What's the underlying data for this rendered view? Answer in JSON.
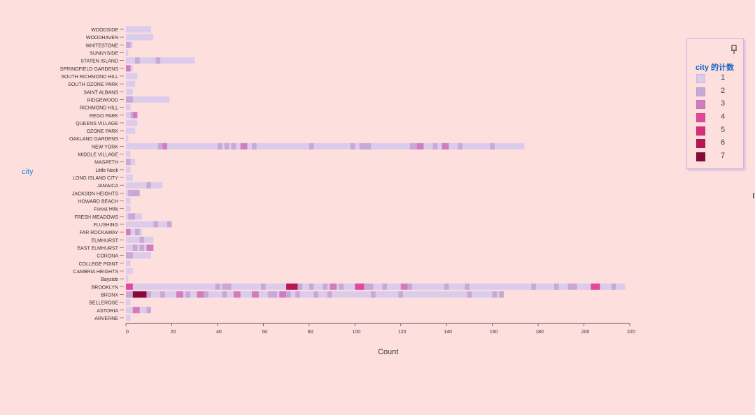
{
  "chart_data": {
    "type": "bar",
    "orientation": "horizontal",
    "stacked": true,
    "xlabel": "Count",
    "ylabel": "city",
    "xlim": [
      0,
      220
    ],
    "xticks": [
      0,
      20,
      40,
      60,
      80,
      100,
      120,
      140,
      160,
      180,
      200,
      220
    ],
    "legend": {
      "title": "city 的计数",
      "placement": "right",
      "items": [
        {
          "label": "1",
          "color": "#dcccec"
        },
        {
          "label": "2",
          "color": "#c8a8d8"
        },
        {
          "label": "3",
          "color": "#d07cc0"
        },
        {
          "label": "4",
          "color": "#e2489c"
        },
        {
          "label": "5",
          "color": "#d72e7a"
        },
        {
          "label": "6",
          "color": "#b51854"
        },
        {
          "label": "7",
          "color": "#850c38"
        }
      ]
    },
    "bars": [
      {
        "city": "WOODSIDE",
        "total": 11,
        "dark": []
      },
      {
        "city": "WOODHAVEN",
        "total": 12,
        "dark": []
      },
      {
        "city": "WHITESTONE",
        "total": 3,
        "dark": [
          [
            0,
            2,
            2
          ]
        ]
      },
      {
        "city": "SUNNYSIDE",
        "total": 1,
        "dark": []
      },
      {
        "city": "STATEN ISLAND",
        "total": 30,
        "dark": [
          [
            4,
            6,
            2
          ],
          [
            13,
            15,
            2
          ]
        ]
      },
      {
        "city": "SPRINGFIELD GARDENS",
        "total": 3,
        "dark": [
          [
            0,
            2,
            3
          ]
        ]
      },
      {
        "city": "SOUTH RICHMOND HILL",
        "total": 5,
        "dark": []
      },
      {
        "city": "SOUTH OZONE PARK",
        "total": 4,
        "dark": []
      },
      {
        "city": "SAINT ALBANS",
        "total": 3,
        "dark": []
      },
      {
        "city": "RIDGEWOOD",
        "total": 19,
        "dark": [
          [
            0,
            3,
            2
          ]
        ]
      },
      {
        "city": "RICHMOND HILL",
        "total": 2,
        "dark": []
      },
      {
        "city": "REGO PARK",
        "total": 5,
        "dark": [
          [
            2,
            3,
            2
          ],
          [
            3,
            5,
            3
          ]
        ]
      },
      {
        "city": "QUEENS VILLAGE",
        "total": 5,
        "dark": []
      },
      {
        "city": "OZONE PARK",
        "total": 4,
        "dark": []
      },
      {
        "city": "OAKLAND GARDENS",
        "total": 1,
        "dark": []
      },
      {
        "city": "NEW YORK",
        "total": 174,
        "dark": [
          [
            14,
            16,
            2
          ],
          [
            16,
            18,
            3
          ],
          [
            40,
            42,
            2
          ],
          [
            43,
            45,
            2
          ],
          [
            46,
            48,
            2
          ],
          [
            50,
            53,
            3
          ],
          [
            55,
            57,
            2
          ],
          [
            80,
            82,
            2
          ],
          [
            98,
            100,
            2
          ],
          [
            102,
            107,
            2
          ],
          [
            124,
            127,
            2
          ],
          [
            127,
            130,
            3
          ],
          [
            134,
            136,
            2
          ],
          [
            138,
            141,
            3
          ],
          [
            145,
            147,
            2
          ],
          [
            159,
            161,
            2
          ]
        ]
      },
      {
        "city": "MIDDLE VILLAGE",
        "total": 2,
        "dark": []
      },
      {
        "city": "MASPETH",
        "total": 4,
        "dark": [
          [
            0,
            2,
            2
          ]
        ]
      },
      {
        "city": "Little Neck",
        "total": 2,
        "dark": []
      },
      {
        "city": "LONG ISLAND CITY",
        "total": 3,
        "dark": []
      },
      {
        "city": "JAMAICA",
        "total": 16,
        "dark": [
          [
            9,
            11,
            2
          ]
        ]
      },
      {
        "city": "JACKSON HEIGHTS",
        "total": 6,
        "dark": [
          [
            1,
            6,
            2
          ]
        ]
      },
      {
        "city": "HOWARD BEACH",
        "total": 2,
        "dark": []
      },
      {
        "city": "Forest Hills",
        "total": 2,
        "dark": []
      },
      {
        "city": "FRESH MEADOWS",
        "total": 7,
        "dark": [
          [
            1,
            4,
            2
          ]
        ]
      },
      {
        "city": "FLUSHING",
        "total": 20,
        "dark": [
          [
            12,
            14,
            2
          ],
          [
            18,
            20,
            2
          ]
        ]
      },
      {
        "city": "FAR ROCKAWAY",
        "total": 7,
        "dark": [
          [
            0,
            2,
            3
          ],
          [
            4,
            6,
            2
          ]
        ]
      },
      {
        "city": "ELMHURST",
        "total": 12,
        "dark": [
          [
            6,
            8,
            2
          ]
        ]
      },
      {
        "city": "EAST ELMHURST",
        "total": 12,
        "dark": [
          [
            3,
            5,
            2
          ],
          [
            6,
            8,
            2
          ],
          [
            9,
            12,
            3
          ]
        ]
      },
      {
        "city": "CORONA",
        "total": 11,
        "dark": [
          [
            0,
            3,
            2
          ]
        ]
      },
      {
        "city": "COLLEGE POINT",
        "total": 2,
        "dark": []
      },
      {
        "city": "CAMBRIA HEIGHTS",
        "total": 3,
        "dark": []
      },
      {
        "city": "Bayside",
        "total": 1,
        "dark": []
      },
      {
        "city": "BROOKLYN",
        "total": 218,
        "dark": [
          [
            0,
            3,
            4
          ],
          [
            39,
            41,
            2
          ],
          [
            42,
            44,
            2
          ],
          [
            44,
            46,
            2
          ],
          [
            59,
            61,
            2
          ],
          [
            70,
            75,
            6
          ],
          [
            75,
            77,
            2
          ],
          [
            80,
            82,
            2
          ],
          [
            86,
            88,
            2
          ],
          [
            89,
            92,
            3
          ],
          [
            93,
            95,
            2
          ],
          [
            100,
            104,
            4
          ],
          [
            104,
            108,
            2
          ],
          [
            112,
            114,
            2
          ],
          [
            120,
            123,
            3
          ],
          [
            123,
            125,
            2
          ],
          [
            139,
            141,
            2
          ],
          [
            148,
            150,
            2
          ],
          [
            177,
            179,
            2
          ],
          [
            187,
            189,
            2
          ],
          [
            193,
            197,
            2
          ],
          [
            203,
            207,
            4
          ],
          [
            212,
            214,
            2
          ]
        ]
      },
      {
        "city": "BRONX",
        "total": 165,
        "dark": [
          [
            0,
            3,
            2
          ],
          [
            3,
            9,
            7
          ],
          [
            9,
            11,
            2
          ],
          [
            15,
            17,
            2
          ],
          [
            22,
            25,
            3
          ],
          [
            26,
            28,
            2
          ],
          [
            31,
            34,
            3
          ],
          [
            34,
            36,
            2
          ],
          [
            42,
            44,
            2
          ],
          [
            47,
            50,
            3
          ],
          [
            55,
            58,
            3
          ],
          [
            62,
            66,
            2
          ],
          [
            67,
            70,
            3
          ],
          [
            70,
            72,
            2
          ],
          [
            74,
            76,
            2
          ],
          [
            82,
            84,
            2
          ],
          [
            88,
            90,
            2
          ],
          [
            107,
            109,
            2
          ],
          [
            119,
            121,
            2
          ],
          [
            149,
            151,
            2
          ],
          [
            160,
            162,
            2
          ],
          [
            163,
            165,
            2
          ]
        ]
      },
      {
        "city": "BELLEROSE",
        "total": 2,
        "dark": []
      },
      {
        "city": "ASTORIA",
        "total": 11,
        "dark": [
          [
            3,
            6,
            3
          ],
          [
            9,
            11,
            2
          ]
        ]
      },
      {
        "city": "ARVERNE",
        "total": 2,
        "dark": []
      }
    ]
  }
}
